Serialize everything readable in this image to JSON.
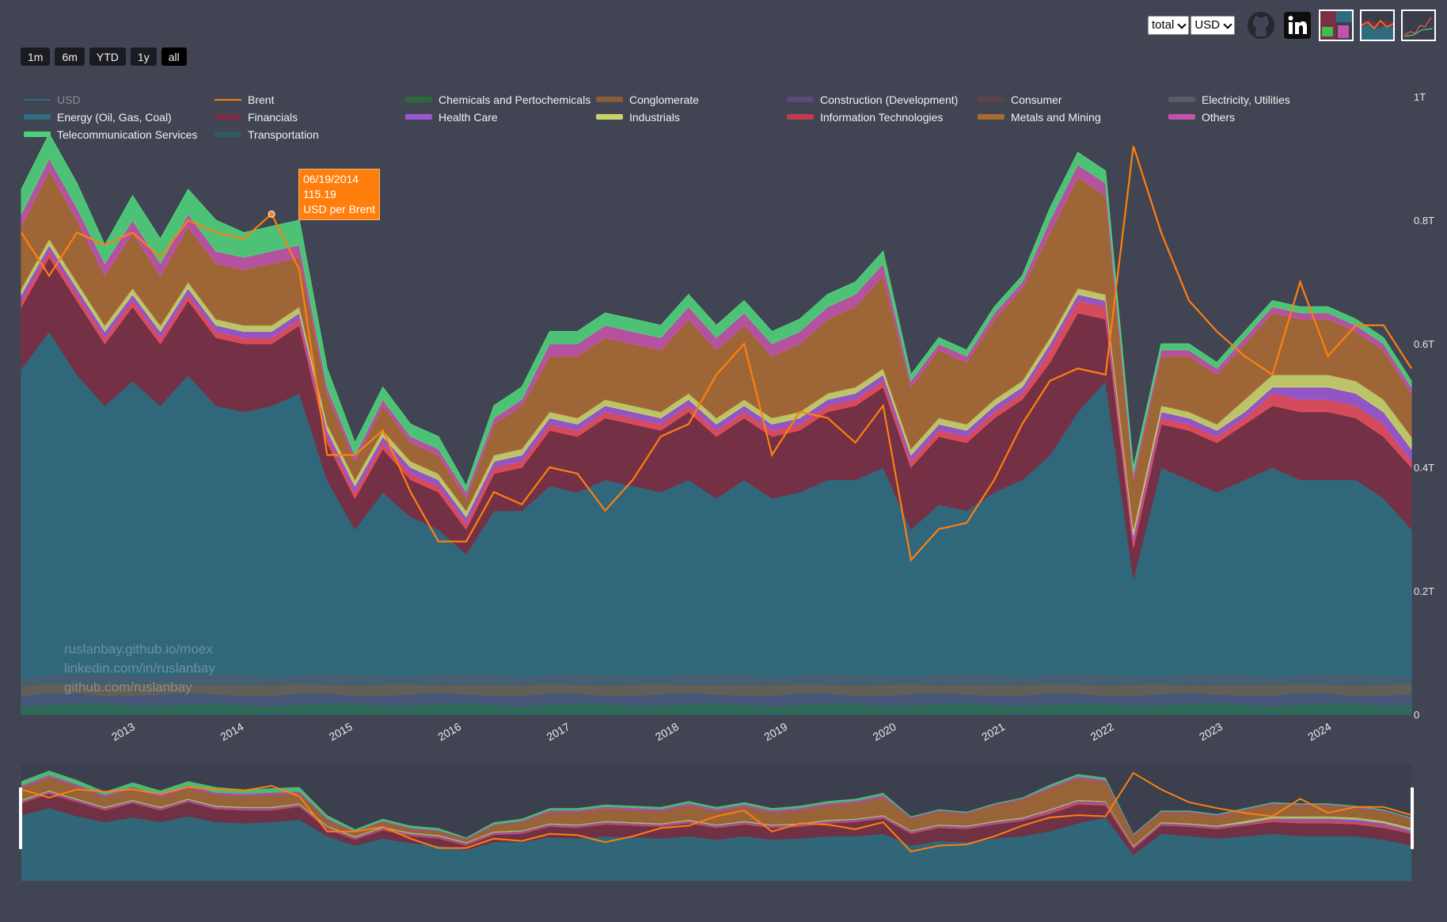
{
  "controls": {
    "ranges": [
      "1m",
      "6m",
      "YTD",
      "1y",
      "all"
    ],
    "active_range": "all",
    "select_mode": "total",
    "select_currency": "USD"
  },
  "tooltip": {
    "date": "06/19/2014",
    "value": "115.19",
    "unit": "USD per Brent"
  },
  "watermark": [
    "ruslanbay.github.io/moex",
    "linkedin.com/in/ruslanbay",
    "github.com/ruslanbay"
  ],
  "icons": {
    "github": "github-icon",
    "linkedin": "linkedin-icon"
  },
  "chart_data": {
    "type": "area",
    "x_ticks": [
      "2013",
      "2014",
      "2015",
      "2016",
      "2017",
      "2018",
      "2019",
      "2020",
      "2021",
      "2022",
      "2023",
      "2024"
    ],
    "y_ticks": [
      "0",
      "0.2T",
      "0.4T",
      "0.6T",
      "0.8T",
      "1T"
    ],
    "xlim": [
      "2012-03",
      "2024-10"
    ],
    "ylim": [
      0,
      1.0
    ],
    "x": [
      "2012-03",
      "2012-06",
      "2012-09",
      "2012-12",
      "2013-03",
      "2013-06",
      "2013-09",
      "2013-12",
      "2014-03",
      "2014-06",
      "2014-09",
      "2014-12",
      "2015-03",
      "2015-06",
      "2015-09",
      "2015-12",
      "2016-03",
      "2016-06",
      "2016-09",
      "2016-12",
      "2017-03",
      "2017-06",
      "2017-09",
      "2017-12",
      "2018-03",
      "2018-06",
      "2018-09",
      "2018-12",
      "2019-03",
      "2019-06",
      "2019-09",
      "2019-12",
      "2020-03",
      "2020-06",
      "2020-09",
      "2020-12",
      "2021-03",
      "2021-06",
      "2021-09",
      "2021-12",
      "2022-03",
      "2022-06",
      "2022-09",
      "2022-12",
      "2023-03",
      "2023-06",
      "2023-09",
      "2023-12",
      "2024-03",
      "2024-06",
      "2024-10"
    ],
    "series": [
      {
        "name": "Energy (Oil, Gas, Coal)",
        "color": "#2f6c80",
        "values": [
          0.56,
          0.62,
          0.55,
          0.5,
          0.54,
          0.5,
          0.55,
          0.5,
          0.49,
          0.5,
          0.52,
          0.38,
          0.3,
          0.36,
          0.32,
          0.3,
          0.26,
          0.33,
          0.33,
          0.37,
          0.36,
          0.38,
          0.37,
          0.36,
          0.38,
          0.35,
          0.38,
          0.35,
          0.36,
          0.38,
          0.38,
          0.4,
          0.3,
          0.34,
          0.33,
          0.36,
          0.38,
          0.42,
          0.49,
          0.54,
          0.22,
          0.4,
          0.38,
          0.36,
          0.38,
          0.4,
          0.38,
          0.38,
          0.38,
          0.35,
          0.3
        ]
      },
      {
        "name": "Financials",
        "color": "#7a2f44",
        "values": [
          0.1,
          0.12,
          0.12,
          0.1,
          0.12,
          0.1,
          0.12,
          0.11,
          0.11,
          0.1,
          0.11,
          0.06,
          0.05,
          0.07,
          0.06,
          0.06,
          0.04,
          0.06,
          0.07,
          0.09,
          0.09,
          0.1,
          0.1,
          0.1,
          0.11,
          0.1,
          0.1,
          0.1,
          0.1,
          0.11,
          0.12,
          0.13,
          0.1,
          0.11,
          0.11,
          0.12,
          0.13,
          0.15,
          0.16,
          0.1,
          0.05,
          0.07,
          0.08,
          0.08,
          0.09,
          0.1,
          0.11,
          0.11,
          0.1,
          0.1,
          0.1
        ]
      },
      {
        "name": "Information Technologies",
        "color": "#e74c5c",
        "values": [
          0.01,
          0.01,
          0.01,
          0.01,
          0.01,
          0.01,
          0.01,
          0.01,
          0.01,
          0.01,
          0.01,
          0.01,
          0.01,
          0.01,
          0.01,
          0.01,
          0.01,
          0.01,
          0.01,
          0.01,
          0.01,
          0.01,
          0.01,
          0.01,
          0.01,
          0.01,
          0.01,
          0.01,
          0.01,
          0.01,
          0.01,
          0.01,
          0.01,
          0.01,
          0.01,
          0.01,
          0.01,
          0.02,
          0.02,
          0.02,
          0.01,
          0.01,
          0.01,
          0.01,
          0.01,
          0.02,
          0.02,
          0.02,
          0.02,
          0.02,
          0.01
        ]
      },
      {
        "name": "Health Care",
        "color": "#9b59d0",
        "values": [
          0.01,
          0.01,
          0.01,
          0.01,
          0.01,
          0.01,
          0.01,
          0.01,
          0.01,
          0.01,
          0.01,
          0.01,
          0.01,
          0.01,
          0.01,
          0.01,
          0.01,
          0.01,
          0.01,
          0.01,
          0.01,
          0.01,
          0.01,
          0.01,
          0.01,
          0.01,
          0.01,
          0.01,
          0.01,
          0.01,
          0.01,
          0.01,
          0.01,
          0.01,
          0.01,
          0.01,
          0.01,
          0.01,
          0.01,
          0.01,
          0.01,
          0.01,
          0.01,
          0.01,
          0.01,
          0.01,
          0.02,
          0.02,
          0.02,
          0.02,
          0.02
        ]
      },
      {
        "name": "Industrials",
        "color": "#c9d36b",
        "values": [
          0.01,
          0.01,
          0.01,
          0.01,
          0.01,
          0.01,
          0.01,
          0.01,
          0.01,
          0.01,
          0.01,
          0.01,
          0.01,
          0.01,
          0.01,
          0.01,
          0.01,
          0.01,
          0.01,
          0.01,
          0.01,
          0.01,
          0.01,
          0.01,
          0.01,
          0.01,
          0.01,
          0.01,
          0.01,
          0.01,
          0.01,
          0.01,
          0.01,
          0.01,
          0.01,
          0.01,
          0.01,
          0.01,
          0.01,
          0.01,
          0.01,
          0.01,
          0.01,
          0.01,
          0.02,
          0.02,
          0.02,
          0.02,
          0.02,
          0.02,
          0.02
        ]
      },
      {
        "name": "Metals and Mining",
        "color": "#a86a33",
        "values": [
          0.1,
          0.11,
          0.1,
          0.08,
          0.09,
          0.08,
          0.09,
          0.09,
          0.09,
          0.1,
          0.08,
          0.05,
          0.03,
          0.04,
          0.03,
          0.03,
          0.02,
          0.05,
          0.07,
          0.09,
          0.1,
          0.1,
          0.1,
          0.1,
          0.12,
          0.11,
          0.12,
          0.1,
          0.11,
          0.12,
          0.13,
          0.15,
          0.1,
          0.11,
          0.1,
          0.13,
          0.15,
          0.17,
          0.18,
          0.16,
          0.08,
          0.08,
          0.09,
          0.08,
          0.09,
          0.1,
          0.09,
          0.09,
          0.08,
          0.08,
          0.07
        ]
      },
      {
        "name": "Others",
        "color": "#c154a8",
        "values": [
          0.02,
          0.02,
          0.02,
          0.02,
          0.02,
          0.02,
          0.02,
          0.02,
          0.02,
          0.02,
          0.02,
          0.01,
          0.01,
          0.01,
          0.01,
          0.01,
          0.01,
          0.01,
          0.01,
          0.02,
          0.02,
          0.02,
          0.02,
          0.02,
          0.02,
          0.02,
          0.02,
          0.02,
          0.02,
          0.02,
          0.02,
          0.02,
          0.01,
          0.01,
          0.01,
          0.01,
          0.01,
          0.02,
          0.02,
          0.02,
          0.01,
          0.01,
          0.01,
          0.01,
          0.01,
          0.01,
          0.01,
          0.01,
          0.01,
          0.01,
          0.01
        ]
      },
      {
        "name": "Telecommunication Services",
        "color": "#4fd07a",
        "values": [
          0.04,
          0.04,
          0.04,
          0.03,
          0.04,
          0.04,
          0.04,
          0.05,
          0.04,
          0.04,
          0.04,
          0.03,
          0.02,
          0.02,
          0.02,
          0.02,
          0.01,
          0.02,
          0.02,
          0.02,
          0.02,
          0.02,
          0.02,
          0.02,
          0.02,
          0.02,
          0.02,
          0.02,
          0.02,
          0.02,
          0.02,
          0.02,
          0.01,
          0.01,
          0.01,
          0.01,
          0.01,
          0.02,
          0.02,
          0.02,
          0.01,
          0.01,
          0.01,
          0.01,
          0.01,
          0.01,
          0.01,
          0.01,
          0.01,
          0.01,
          0.01
        ]
      },
      {
        "name": "Brent",
        "color": "#ff7f0e",
        "type": "line",
        "values": [
          0.78,
          0.71,
          0.78,
          0.76,
          0.78,
          0.74,
          0.8,
          0.78,
          0.77,
          0.81,
          0.72,
          0.42,
          0.42,
          0.46,
          0.36,
          0.28,
          0.28,
          0.36,
          0.34,
          0.4,
          0.39,
          0.33,
          0.38,
          0.45,
          0.47,
          0.55,
          0.6,
          0.42,
          0.49,
          0.48,
          0.44,
          0.5,
          0.25,
          0.3,
          0.31,
          0.38,
          0.47,
          0.54,
          0.56,
          0.55,
          0.92,
          0.78,
          0.67,
          0.62,
          0.58,
          0.55,
          0.7,
          0.58,
          0.63,
          0.63,
          0.56
        ]
      }
    ]
  }
}
